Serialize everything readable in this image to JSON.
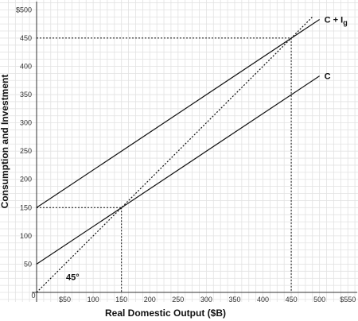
{
  "chart_data": {
    "type": "line",
    "xlabel": "Real Domestic Output ($B)",
    "ylabel": "Consumption and Investment",
    "xlim": [
      0,
      575
    ],
    "ylim": [
      0,
      510
    ],
    "x_ticks": [
      {
        "value": 0,
        "label": "0"
      },
      {
        "value": 50,
        "label": "$50"
      },
      {
        "value": 100,
        "label": "100"
      },
      {
        "value": 150,
        "label": "150"
      },
      {
        "value": 200,
        "label": "200"
      },
      {
        "value": 250,
        "label": "250"
      },
      {
        "value": 300,
        "label": "300"
      },
      {
        "value": 350,
        "label": "350"
      },
      {
        "value": 400,
        "label": "400"
      },
      {
        "value": 450,
        "label": "450"
      },
      {
        "value": 500,
        "label": "500"
      },
      {
        "value": 550,
        "label": "$550"
      }
    ],
    "y_ticks": [
      {
        "value": 50,
        "label": "50"
      },
      {
        "value": 100,
        "label": "100"
      },
      {
        "value": 150,
        "label": "150"
      },
      {
        "value": 200,
        "label": "200"
      },
      {
        "value": 250,
        "label": "250"
      },
      {
        "value": 300,
        "label": "300"
      },
      {
        "value": 350,
        "label": "350"
      },
      {
        "value": 400,
        "label": "400"
      },
      {
        "value": 450,
        "label": "450"
      },
      {
        "value": 500,
        "label": "$500"
      }
    ],
    "grid": true,
    "series": [
      {
        "name": "C + Ig",
        "style": "solid",
        "points": [
          [
            0,
            150
          ],
          [
            500,
            483
          ]
        ]
      },
      {
        "name": "C",
        "style": "solid",
        "points": [
          [
            0,
            50
          ],
          [
            500,
            383
          ]
        ]
      },
      {
        "name": "",
        "style": "dotted",
        "points": [
          [
            0,
            0
          ],
          [
            487,
            487
          ]
        ]
      }
    ],
    "guides": [
      {
        "points": [
          [
            0,
            450
          ],
          [
            450,
            450
          ]
        ]
      },
      {
        "points": [
          [
            450,
            450
          ],
          [
            450,
            0
          ]
        ]
      },
      {
        "points": [
          [
            0,
            150
          ],
          [
            150,
            150
          ]
        ]
      },
      {
        "points": [
          [
            150,
            150
          ],
          [
            150,
            0
          ]
        ]
      }
    ],
    "annotations": [
      {
        "text": "45°",
        "x": 52,
        "y": 22
      }
    ],
    "colors": {
      "line": "#111111",
      "grid": "#e2e2e2",
      "axis": "#333333"
    }
  }
}
